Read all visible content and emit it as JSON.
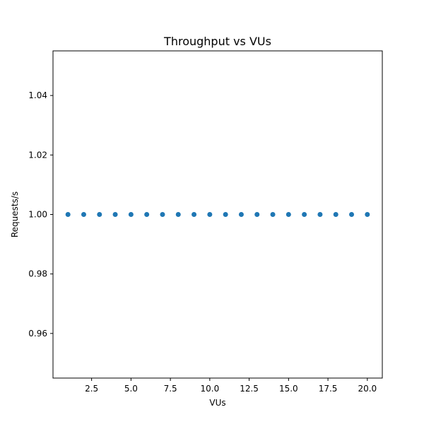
{
  "chart_data": {
    "type": "scatter",
    "title": "Throughput vs VUs",
    "xlabel": "VUs",
    "ylabel": "Requests/s",
    "xlim": [
      0.05,
      20.95
    ],
    "ylim": [
      0.945,
      1.055
    ],
    "x_ticks": [
      2.5,
      5.0,
      7.5,
      10.0,
      12.5,
      15.0,
      17.5,
      20.0
    ],
    "x_tick_labels": [
      "2.5",
      "5.0",
      "7.5",
      "10.0",
      "12.5",
      "15.0",
      "17.5",
      "20.0"
    ],
    "y_ticks": [
      0.96,
      0.98,
      1.0,
      1.02,
      1.04
    ],
    "y_tick_labels": [
      "0.96",
      "0.98",
      "1.00",
      "1.02",
      "1.04"
    ],
    "grid": false,
    "legend": "none",
    "colors": {
      "marker": "#1f77b4",
      "axis": "#000000",
      "background": "#ffffff"
    },
    "series": [
      {
        "x": [
          1,
          2,
          3,
          4,
          5,
          6,
          7,
          8,
          9,
          10,
          11,
          12,
          13,
          14,
          15,
          16,
          17,
          18,
          19,
          20
        ],
        "y": [
          1,
          1,
          1,
          1,
          1,
          1,
          1,
          1,
          1,
          1,
          1,
          1,
          1,
          1,
          1,
          1,
          1,
          1,
          1,
          1
        ]
      }
    ]
  }
}
